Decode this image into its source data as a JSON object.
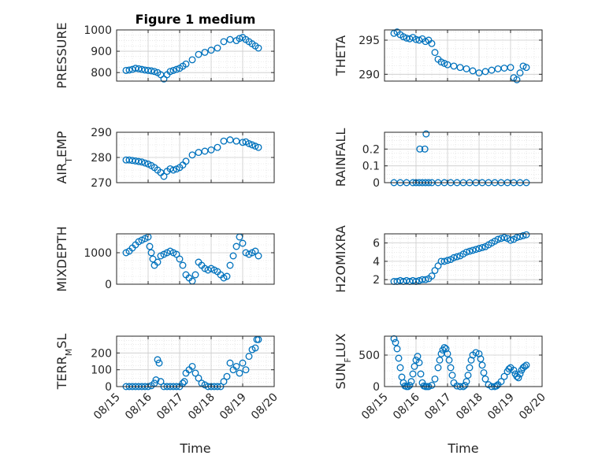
{
  "window": {
    "title": "Figure 1 medium"
  },
  "chart_data": [
    {
      "type": "scatter",
      "title": "Figure 1 medium",
      "ylabel": "PRESSURE",
      "xlim": [
        0,
        5
      ],
      "ylim": [
        760,
        1000
      ],
      "yticks": [
        800,
        900,
        1000
      ],
      "xtick_labels": [],
      "x": [
        0.3,
        0.4,
        0.5,
        0.6,
        0.7,
        0.8,
        0.9,
        1.0,
        1.1,
        1.2,
        1.3,
        1.4,
        1.5,
        1.6,
        1.7,
        1.8,
        1.9,
        2.0,
        2.1,
        2.2,
        2.4,
        2.6,
        2.8,
        3.0,
        3.2,
        3.4,
        3.6,
        3.8,
        3.9,
        4.0,
        4.1,
        4.2,
        4.3,
        4.4,
        4.5
      ],
      "y": [
        810,
        812,
        815,
        820,
        818,
        815,
        812,
        810,
        808,
        805,
        800,
        790,
        770,
        790,
        805,
        810,
        815,
        820,
        830,
        840,
        860,
        885,
        895,
        905,
        915,
        945,
        955,
        950,
        960,
        965,
        955,
        945,
        935,
        925,
        915
      ]
    },
    {
      "type": "scatter",
      "ylabel": "THETA",
      "xlim": [
        0,
        5
      ],
      "ylim": [
        289,
        296.5
      ],
      "yticks": [
        290,
        295
      ],
      "xtick_labels": [],
      "x": [
        0.3,
        0.4,
        0.5,
        0.6,
        0.7,
        0.8,
        0.9,
        1.0,
        1.1,
        1.2,
        1.3,
        1.4,
        1.5,
        1.6,
        1.7,
        1.8,
        1.9,
        2.0,
        2.2,
        2.4,
        2.6,
        2.8,
        3.0,
        3.2,
        3.4,
        3.6,
        3.8,
        4.0,
        4.1,
        4.2,
        4.3,
        4.4,
        4.5
      ],
      "y": [
        296,
        296.2,
        295.8,
        295.5,
        295.3,
        295.2,
        295.4,
        295.1,
        295.0,
        295.2,
        294.8,
        295.0,
        294.5,
        293.2,
        292.2,
        291.8,
        291.6,
        291.4,
        291.2,
        291.0,
        290.8,
        290.5,
        290.2,
        290.4,
        290.6,
        290.8,
        290.9,
        291.0,
        289.5,
        289.2,
        290.2,
        291.2,
        291.0
      ]
    },
    {
      "type": "scatter",
      "ylabel": "AIR_TEMP",
      "xlim": [
        0,
        5
      ],
      "ylim": [
        270,
        290
      ],
      "yticks": [
        270,
        280,
        290
      ],
      "xtick_labels": [],
      "x": [
        0.3,
        0.4,
        0.5,
        0.6,
        0.7,
        0.8,
        0.9,
        1.0,
        1.1,
        1.2,
        1.3,
        1.4,
        1.5,
        1.6,
        1.7,
        1.8,
        1.9,
        2.0,
        2.1,
        2.2,
        2.4,
        2.6,
        2.8,
        3.0,
        3.2,
        3.4,
        3.6,
        3.8,
        4.0,
        4.1,
        4.2,
        4.3,
        4.4,
        4.5
      ],
      "y": [
        279,
        279,
        278.8,
        278.6,
        278.4,
        278.2,
        277.8,
        277.4,
        276.8,
        276,
        275,
        274,
        272.5,
        274.5,
        275.5,
        275,
        275.4,
        276,
        277,
        278.5,
        281,
        282,
        282.5,
        283,
        284,
        286.5,
        287,
        286.5,
        286,
        286.2,
        285.5,
        285,
        284.5,
        284
      ]
    },
    {
      "type": "scatter",
      "ylabel": "RAINFALL",
      "xlim": [
        0,
        5
      ],
      "ylim": [
        0,
        0.3
      ],
      "yticks": [
        0,
        0.1,
        0.2
      ],
      "xtick_labels": [],
      "x": [
        0.3,
        0.5,
        0.7,
        0.9,
        1.0,
        1.1,
        1.2,
        1.3,
        1.4,
        1.5,
        1.7,
        1.9,
        2.1,
        2.3,
        2.5,
        2.7,
        2.9,
        3.1,
        3.3,
        3.5,
        3.7,
        3.9,
        4.1,
        4.3,
        4.5,
        1.12,
        1.28,
        1.32
      ],
      "y": [
        0,
        0,
        0,
        0,
        0,
        0,
        0,
        0,
        0,
        0,
        0,
        0,
        0,
        0,
        0,
        0,
        0,
        0,
        0,
        0,
        0,
        0,
        0,
        0,
        0,
        0.2,
        0.2,
        0.29
      ]
    },
    {
      "type": "scatter",
      "ylabel": "MIXDEPTH",
      "xlim": [
        0,
        5
      ],
      "ylim": [
        0,
        1600
      ],
      "yticks": [
        0,
        1000
      ],
      "xtick_labels": [],
      "x": [
        0.3,
        0.4,
        0.5,
        0.6,
        0.7,
        0.8,
        0.9,
        1.0,
        1.05,
        1.1,
        1.15,
        1.2,
        1.3,
        1.4,
        1.5,
        1.6,
        1.7,
        1.8,
        1.9,
        2.0,
        2.1,
        2.2,
        2.3,
        2.4,
        2.5,
        2.6,
        2.7,
        2.8,
        2.9,
        3.0,
        3.1,
        3.2,
        3.3,
        3.4,
        3.5,
        3.6,
        3.7,
        3.8,
        3.9,
        4.0,
        4.1,
        4.2,
        4.3,
        4.4,
        4.5
      ],
      "y": [
        1000,
        1050,
        1150,
        1250,
        1350,
        1400,
        1450,
        1500,
        1200,
        1000,
        800,
        600,
        700,
        900,
        950,
        1000,
        1050,
        1000,
        950,
        800,
        600,
        300,
        200,
        100,
        300,
        700,
        600,
        500,
        450,
        500,
        450,
        400,
        300,
        200,
        250,
        600,
        900,
        1200,
        1500,
        1300,
        1000,
        950,
        1000,
        1050,
        900
      ]
    },
    {
      "type": "scatter",
      "ylabel": "H2OMIXRA",
      "xlim": [
        0,
        5
      ],
      "ylim": [
        1.5,
        7
      ],
      "yticks": [
        2,
        4,
        6
      ],
      "xtick_labels": [],
      "x": [
        0.3,
        0.4,
        0.5,
        0.6,
        0.7,
        0.8,
        0.9,
        1.0,
        1.1,
        1.2,
        1.3,
        1.4,
        1.5,
        1.6,
        1.7,
        1.8,
        1.9,
        2.0,
        2.1,
        2.2,
        2.3,
        2.4,
        2.5,
        2.6,
        2.7,
        2.8,
        2.9,
        3.0,
        3.1,
        3.2,
        3.3,
        3.4,
        3.5,
        3.6,
        3.7,
        3.8,
        3.9,
        4.0,
        4.1,
        4.2,
        4.3,
        4.4,
        4.5
      ],
      "y": [
        1.8,
        1.8,
        1.9,
        1.8,
        1.9,
        1.8,
        1.9,
        1.8,
        1.9,
        2.0,
        2.0,
        2.1,
        2.4,
        3.0,
        3.5,
        4.0,
        4.0,
        4.1,
        4.2,
        4.4,
        4.5,
        4.6,
        4.8,
        5.0,
        5.1,
        5.2,
        5.3,
        5.4,
        5.5,
        5.6,
        5.8,
        6.0,
        6.2,
        6.4,
        6.5,
        6.6,
        6.5,
        6.3,
        6.4,
        6.6,
        6.7,
        6.8,
        6.9
      ]
    },
    {
      "type": "scatter",
      "ylabel": "TERR_MSL",
      "xlim": [
        0,
        5
      ],
      "ylim": [
        0,
        300
      ],
      "yticks": [
        0,
        100,
        200
      ],
      "xtick_labels": [
        "08/15",
        "08/16",
        "08/17",
        "08/18",
        "08/19",
        "08/20"
      ],
      "xlabel": "Time",
      "x": [
        0.3,
        0.4,
        0.5,
        0.6,
        0.7,
        0.8,
        0.9,
        1.0,
        1.1,
        1.2,
        1.25,
        1.3,
        1.35,
        1.4,
        1.5,
        1.6,
        1.7,
        1.8,
        1.9,
        2.0,
        2.1,
        2.15,
        2.2,
        2.3,
        2.4,
        2.5,
        2.6,
        2.7,
        2.8,
        2.9,
        3.0,
        3.1,
        3.2,
        3.3,
        3.4,
        3.5,
        3.6,
        3.7,
        3.8,
        3.9,
        4.0,
        4.1,
        4.2,
        4.3,
        4.4,
        4.45,
        4.5
      ],
      "y": [
        0,
        0,
        0,
        0,
        0,
        0,
        0,
        0,
        5,
        20,
        40,
        160,
        140,
        30,
        0,
        0,
        0,
        0,
        0,
        0,
        20,
        30,
        80,
        100,
        120,
        80,
        50,
        20,
        10,
        0,
        0,
        0,
        0,
        0,
        30,
        60,
        140,
        100,
        120,
        80,
        140,
        100,
        180,
        220,
        230,
        280,
        280
      ]
    },
    {
      "type": "scatter",
      "ylabel": "SUN_FLUX",
      "xlim": [
        0,
        5
      ],
      "ylim": [
        0,
        800
      ],
      "yticks": [
        0,
        500
      ],
      "xtick_labels": [
        "08/15",
        "08/16",
        "08/17",
        "08/18",
        "08/19",
        "08/20"
      ],
      "xlabel": "Time",
      "x": [
        0.3,
        0.35,
        0.4,
        0.45,
        0.5,
        0.55,
        0.6,
        0.65,
        0.7,
        0.75,
        0.8,
        0.85,
        0.9,
        0.95,
        1.0,
        1.05,
        1.1,
        1.15,
        1.2,
        1.25,
        1.3,
        1.35,
        1.4,
        1.5,
        1.6,
        1.7,
        1.75,
        1.8,
        1.85,
        1.9,
        1.95,
        2.0,
        2.05,
        2.1,
        2.15,
        2.2,
        2.3,
        2.4,
        2.5,
        2.55,
        2.6,
        2.65,
        2.7,
        2.75,
        2.8,
        2.9,
        3.0,
        3.05,
        3.1,
        3.15,
        3.2,
        3.3,
        3.4,
        3.5,
        3.55,
        3.6,
        3.7,
        3.8,
        3.9,
        3.95,
        4.0,
        4.1,
        4.15,
        4.2,
        4.25,
        4.3,
        4.35,
        4.4,
        4.45,
        4.5
      ],
      "y": [
        760,
        700,
        600,
        450,
        300,
        150,
        60,
        10,
        0,
        0,
        20,
        80,
        200,
        320,
        420,
        480,
        380,
        200,
        60,
        10,
        0,
        0,
        0,
        20,
        120,
        300,
        420,
        520,
        580,
        620,
        600,
        520,
        420,
        300,
        180,
        60,
        10,
        0,
        0,
        20,
        80,
        180,
        300,
        420,
        500,
        540,
        520,
        440,
        340,
        220,
        120,
        30,
        0,
        0,
        10,
        30,
        80,
        160,
        240,
        280,
        300,
        260,
        200,
        160,
        140,
        200,
        260,
        300,
        320,
        340
      ]
    }
  ]
}
